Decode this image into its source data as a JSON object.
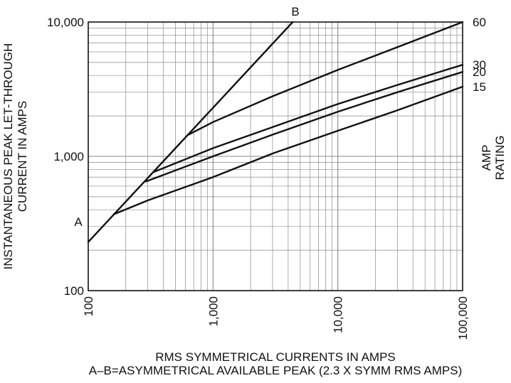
{
  "chart_data": {
    "type": "line",
    "x_scale": "log",
    "y_scale": "log",
    "xlim": [
      100,
      100000
    ],
    "ylim": [
      100,
      10000
    ],
    "grid": true,
    "xlabel_line1": "RMS SYMMETRICAL CURRENTS IN AMPS",
    "xlabel_line2": "A–B=ASYMMETRICAL AVAILABLE PEAK (2.3 X SYMM RMS AMPS)",
    "ylabel_line1": "INSTANTANEOUS PEAK LET-THROUGH",
    "ylabel_line2": "CURRENT IN AMPS",
    "right_label_line1": "AMP",
    "right_label_line2": "RATING",
    "x_ticks": [
      {
        "value": 100,
        "label": "100"
      },
      {
        "value": 1000,
        "label": "1,000"
      },
      {
        "value": 10000,
        "label": "10,000"
      },
      {
        "value": 100000,
        "label": "100,000"
      }
    ],
    "y_ticks": [
      {
        "value": 100,
        "label": "100"
      },
      {
        "value": 1000,
        "label": "1,000"
      },
      {
        "value": 10000,
        "label": "10,000"
      }
    ],
    "ab_line": {
      "start_label": "A",
      "end_label": "B",
      "points": [
        [
          100,
          230
        ],
        [
          4350,
          10000
        ]
      ]
    },
    "series": [
      {
        "name": "60",
        "points": [
          [
            620,
            1430
          ],
          [
            1000,
            1800
          ],
          [
            3000,
            2800
          ],
          [
            10000,
            4400
          ],
          [
            30000,
            6500
          ],
          [
            100000,
            10000
          ]
        ]
      },
      {
        "name": "30",
        "points": [
          [
            330,
            760
          ],
          [
            1000,
            1150
          ],
          [
            3000,
            1650
          ],
          [
            10000,
            2450
          ],
          [
            30000,
            3400
          ],
          [
            100000,
            4800
          ]
        ]
      },
      {
        "name": "20",
        "points": [
          [
            290,
            650
          ],
          [
            1000,
            1000
          ],
          [
            3000,
            1450
          ],
          [
            10000,
            2150
          ],
          [
            30000,
            3000
          ],
          [
            100000,
            4250
          ]
        ]
      },
      {
        "name": "15",
        "points": [
          [
            160,
            370
          ],
          [
            300,
            470
          ],
          [
            1000,
            700
          ],
          [
            3000,
            1050
          ],
          [
            10000,
            1550
          ],
          [
            30000,
            2200
          ],
          [
            100000,
            3300
          ]
        ]
      }
    ]
  }
}
